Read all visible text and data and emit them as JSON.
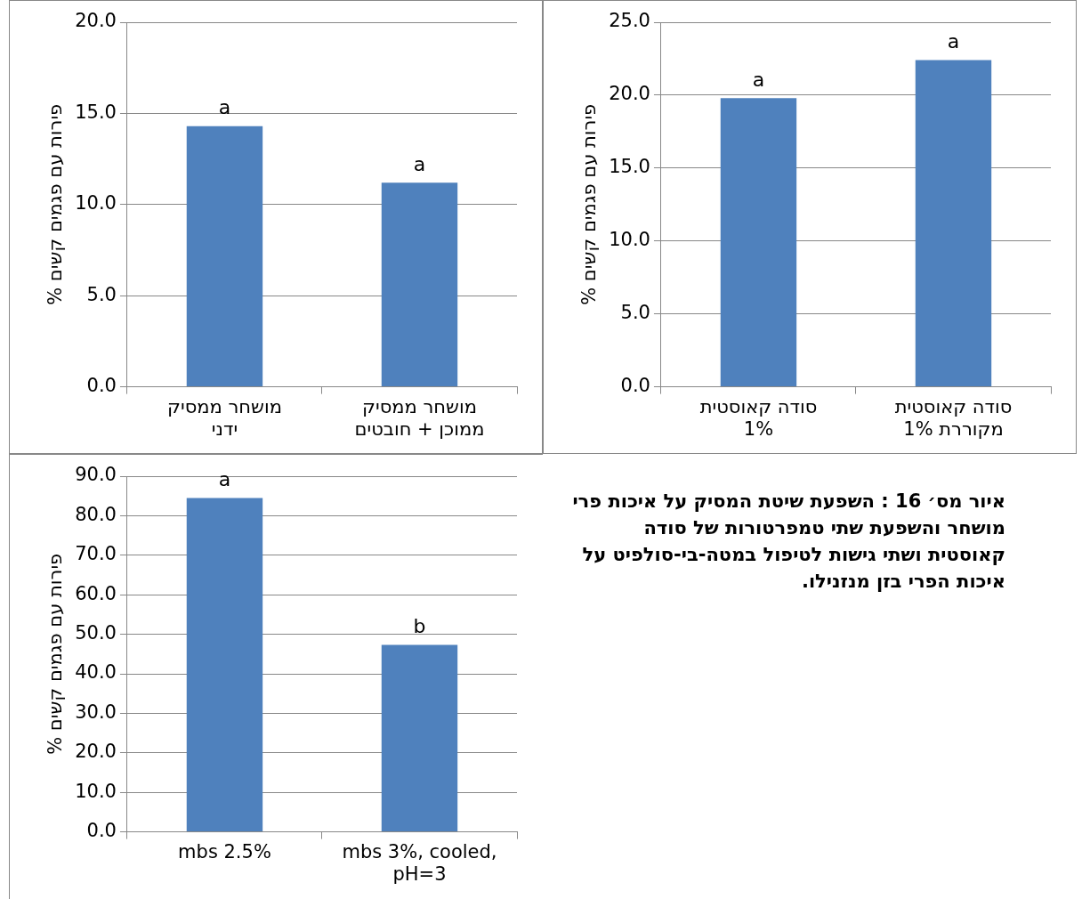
{
  "chart_data": [
    {
      "type": "bar",
      "ylabel": "% פירות עם פגמים קשים",
      "categories": [
        "מושחר ממסיק\nידני",
        "מושחר ממסיק\nממוכן + חובטים"
      ],
      "values": [
        14.3,
        11.2
      ],
      "color": "#4f81bd",
      "ylim": [
        0,
        20
      ],
      "yticks": [
        {
          "value": 0,
          "label": "0.0"
        },
        {
          "value": 5,
          "label": "5.0"
        },
        {
          "value": 10,
          "label": "10.0"
        },
        {
          "value": 15,
          "label": "15.0"
        },
        {
          "value": 20,
          "label": "20.0"
        }
      ],
      "grid": "y",
      "annotations": [
        {
          "text": "a",
          "x": "מושחר ממסיק\nידני",
          "y": 14.3
        },
        {
          "text": "a",
          "x": "מושחר ממסיק\nממוכן + חובטים",
          "y": 11.2
        }
      ]
    },
    {
      "type": "bar",
      "ylabel": "% פירות עם פגמים קשים",
      "categories": [
        "סודה קאוסטית\n1%",
        "סודה קאוסטית\n1% מקוררת"
      ],
      "values": [
        19.8,
        22.4
      ],
      "color": "#4f81bd",
      "ylim": [
        0,
        25
      ],
      "yticks": [
        {
          "value": 0,
          "label": "0.0"
        },
        {
          "value": 5,
          "label": "5.0"
        },
        {
          "value": 10,
          "label": "10.0"
        },
        {
          "value": 15,
          "label": "15.0"
        },
        {
          "value": 20,
          "label": "20.0"
        },
        {
          "value": 25,
          "label": "25.0"
        }
      ],
      "grid": "y",
      "annotations": [
        {
          "text": "a",
          "x": "סודה קאוסטית\n1%",
          "y": 19.8
        },
        {
          "text": "a",
          "x": "סודה קאוסטית\n1% מקוררת",
          "y": 22.4
        }
      ]
    },
    {
      "type": "bar",
      "ylabel": "% פירות עם פגמים קשים",
      "categories": [
        "mbs 2.5%",
        "mbs 3%, cooled,\npH=3"
      ],
      "values": [
        84.5,
        47.3
      ],
      "color": "#4f81bd",
      "ylim": [
        0,
        90
      ],
      "yticks": [
        {
          "value": 0,
          "label": "0.0"
        },
        {
          "value": 10,
          "label": "10.0"
        },
        {
          "value": 20,
          "label": "20.0"
        },
        {
          "value": 30,
          "label": "30.0"
        },
        {
          "value": 40,
          "label": "40.0"
        },
        {
          "value": 50,
          "label": "50.0"
        },
        {
          "value": 60,
          "label": "60.0"
        },
        {
          "value": 70,
          "label": "70.0"
        },
        {
          "value": 80,
          "label": "80.0"
        },
        {
          "value": 90,
          "label": "90.0"
        }
      ],
      "grid": "y",
      "annotations": [
        {
          "text": "a",
          "x": "mbs 2.5%",
          "y": 84.5
        },
        {
          "text": "b",
          "x": "mbs 3%, cooled,\npH=3",
          "y": 47.3
        }
      ]
    },
    {
      "type": "other",
      "title": "איור מס׳ 16 : השפעת שיטת המסיק על איכות פרי מושחר והשפעת שתי טמפרטורות של סודה קאוסטית ושתי גישות לטיפול במטה-בי-סולפיט על איכות הפרי בזן מנזנילו."
    }
  ]
}
